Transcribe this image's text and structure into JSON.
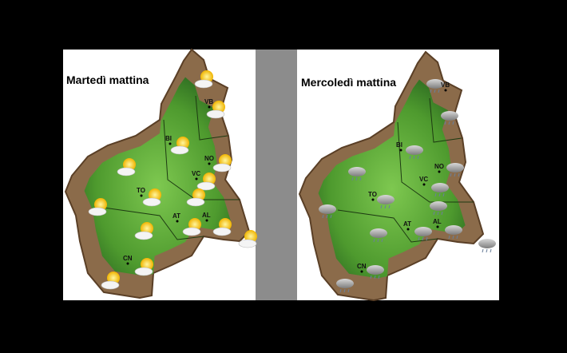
{
  "panels": [
    {
      "title": "Martedì mattina",
      "cities": [
        "VB",
        "BI",
        "NO",
        "VC",
        "TO",
        "AT",
        "AL",
        "CN"
      ]
    },
    {
      "title": "Mercoledì mattina",
      "cities": [
        "VB",
        "BI",
        "NO",
        "VC",
        "TO",
        "AT",
        "AL",
        "CN"
      ]
    }
  ]
}
